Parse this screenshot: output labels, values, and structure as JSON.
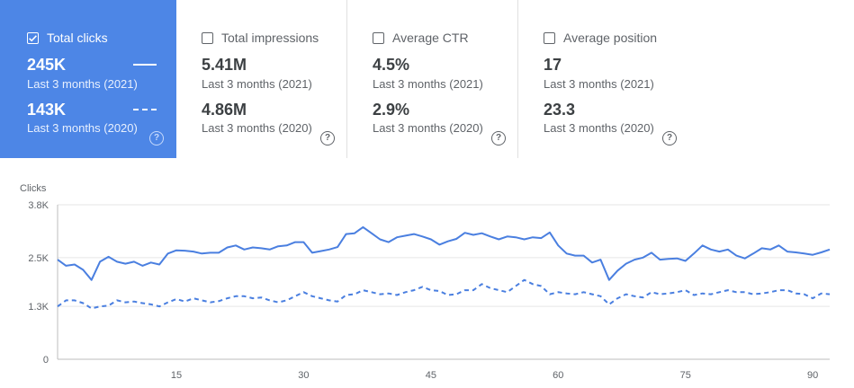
{
  "cards": [
    {
      "title": "Total clicks",
      "checked": true,
      "value_2021": "245K",
      "label_2021": "Last 3 months (2021)",
      "value_2020": "143K",
      "label_2020": "Last 3 months (2020)"
    },
    {
      "title": "Total impressions",
      "checked": false,
      "value_2021": "5.41M",
      "label_2021": "Last 3 months (2021)",
      "value_2020": "4.86M",
      "label_2020": "Last 3 months (2020)"
    },
    {
      "title": "Average CTR",
      "checked": false,
      "value_2021": "4.5%",
      "label_2021": "Last 3 months (2021)",
      "value_2020": "2.9%",
      "label_2020": "Last 3 months (2020)"
    },
    {
      "title": "Average position",
      "checked": false,
      "value_2021": "17",
      "label_2021": "Last 3 months (2021)",
      "value_2020": "23.3",
      "label_2020": "Last 3 months (2020)"
    }
  ],
  "help_glyph": "?",
  "colors": {
    "accent": "#4d86e6",
    "line": "#4a7fe0",
    "grid": "#e6e6e6",
    "text": "#5f6368"
  },
  "chart_data": {
    "type": "line",
    "ylabel": "Clicks",
    "ylim": [
      0,
      3800
    ],
    "yticks": [
      {
        "v": 0,
        "label": "0"
      },
      {
        "v": 1300,
        "label": "1.3K"
      },
      {
        "v": 2500,
        "label": "2.5K"
      },
      {
        "v": 3800,
        "label": "3.8K"
      }
    ],
    "xlim": [
      1,
      92
    ],
    "xticks": [
      15,
      30,
      45,
      60,
      75,
      90
    ],
    "series": [
      {
        "name": "Last 3 months (2021)",
        "style": "solid",
        "values": [
          2450,
          2300,
          2330,
          2200,
          1950,
          2400,
          2520,
          2400,
          2350,
          2400,
          2300,
          2380,
          2330,
          2600,
          2680,
          2670,
          2650,
          2600,
          2620,
          2620,
          2750,
          2800,
          2700,
          2750,
          2730,
          2700,
          2780,
          2800,
          2880,
          2880,
          2620,
          2660,
          2700,
          2760,
          3080,
          3100,
          3250,
          3100,
          2950,
          2880,
          3000,
          3040,
          3080,
          3020,
          2950,
          2820,
          2900,
          2960,
          3110,
          3060,
          3100,
          3020,
          2950,
          3020,
          3000,
          2950,
          3000,
          2980,
          3120,
          2800,
          2600,
          2550,
          2550,
          2380,
          2450,
          1950,
          2180,
          2350,
          2450,
          2500,
          2620,
          2450,
          2470,
          2480,
          2420,
          2600,
          2800,
          2700,
          2650,
          2700,
          2550,
          2480,
          2600,
          2730,
          2700,
          2800,
          2650,
          2630,
          2600,
          2570,
          2630,
          2700
        ]
      },
      {
        "name": "Last 3 months (2020)",
        "style": "dashed",
        "values": [
          1300,
          1450,
          1450,
          1380,
          1250,
          1300,
          1320,
          1450,
          1400,
          1420,
          1380,
          1350,
          1300,
          1400,
          1480,
          1420,
          1500,
          1450,
          1400,
          1430,
          1500,
          1550,
          1550,
          1500,
          1520,
          1450,
          1400,
          1450,
          1550,
          1650,
          1550,
          1500,
          1450,
          1420,
          1580,
          1600,
          1700,
          1650,
          1600,
          1620,
          1580,
          1650,
          1700,
          1780,
          1700,
          1680,
          1580,
          1600,
          1700,
          1700,
          1850,
          1750,
          1700,
          1650,
          1800,
          1950,
          1850,
          1800,
          1600,
          1650,
          1620,
          1600,
          1650,
          1600,
          1550,
          1350,
          1500,
          1600,
          1550,
          1520,
          1650,
          1600,
          1620,
          1650,
          1700,
          1580,
          1620,
          1600,
          1650,
          1700,
          1650,
          1650,
          1600,
          1620,
          1650,
          1700,
          1700,
          1620,
          1600,
          1500,
          1620,
          1600
        ]
      }
    ]
  }
}
